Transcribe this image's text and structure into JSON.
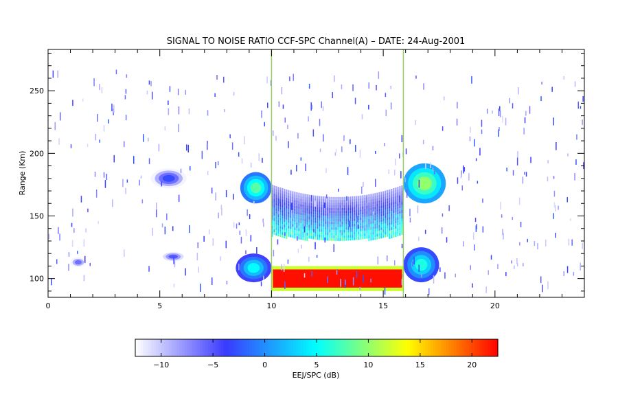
{
  "chart_data": [
    {
      "type": "heatmap",
      "title": "SIGNAL TO NOISE RATIO CCF-SPC Channel(A) – DATE: 24-Aug-2001",
      "xlabel": "",
      "ylabel": "Range (Km)",
      "xlim": [
        0,
        24
      ],
      "ylim": [
        85,
        283
      ],
      "xticks": [
        0,
        5,
        10,
        15,
        20
      ],
      "yticks": [
        100,
        150,
        200,
        250
      ],
      "x_minor_step": 1,
      "y_minor_step": 10,
      "grid": false,
      "colormap": [
        "#ffffff",
        "#3a3aff",
        "#00ffff",
        "#ffff00",
        "#ff0000"
      ],
      "regions": [
        {
          "name": "",
          "x": [
            10.0,
            15.9
          ],
          "y": [
            90,
            110
          ],
          "snr_db": 22,
          "kind": "solid"
        },
        {
          "name": "",
          "x": [
            10.0,
            15.9
          ],
          "y": [
            130,
            175
          ],
          "snr_db": 2,
          "kind": "arc"
        },
        {
          "name": "",
          "x": [
            8.6,
            10.0
          ],
          "y": [
            160,
            185
          ],
          "snr_db": 8,
          "kind": "blob"
        },
        {
          "name": "",
          "x": [
            15.9,
            17.8
          ],
          "y": [
            160,
            192
          ],
          "snr_db": 10,
          "kind": "blob"
        },
        {
          "name": "",
          "x": [
            8.4,
            10.0
          ],
          "y": [
            97,
            120
          ],
          "snr_db": 5,
          "kind": "blob"
        },
        {
          "name": "",
          "x": [
            15.9,
            17.5
          ],
          "y": [
            97,
            125
          ],
          "snr_db": 6,
          "kind": "blob"
        },
        {
          "name": "",
          "x": [
            4.6,
            6.2
          ],
          "y": [
            172,
            188
          ],
          "snr_db": -3,
          "kind": "blob"
        },
        {
          "name": "",
          "x": [
            5.0,
            6.2
          ],
          "y": [
            113,
            122
          ],
          "snr_db": -5,
          "kind": "blob"
        },
        {
          "name": "",
          "x": [
            0.9,
            1.8
          ],
          "y": [
            108,
            118
          ],
          "snr_db": -6,
          "kind": "blob"
        }
      ]
    },
    {
      "type": "colorbar",
      "xlabel": "EEJ/SPC (dB)",
      "xlim": [
        -12.5,
        22.5
      ],
      "ticks": [
        -10,
        -5,
        0,
        5,
        10,
        15,
        20
      ]
    }
  ]
}
